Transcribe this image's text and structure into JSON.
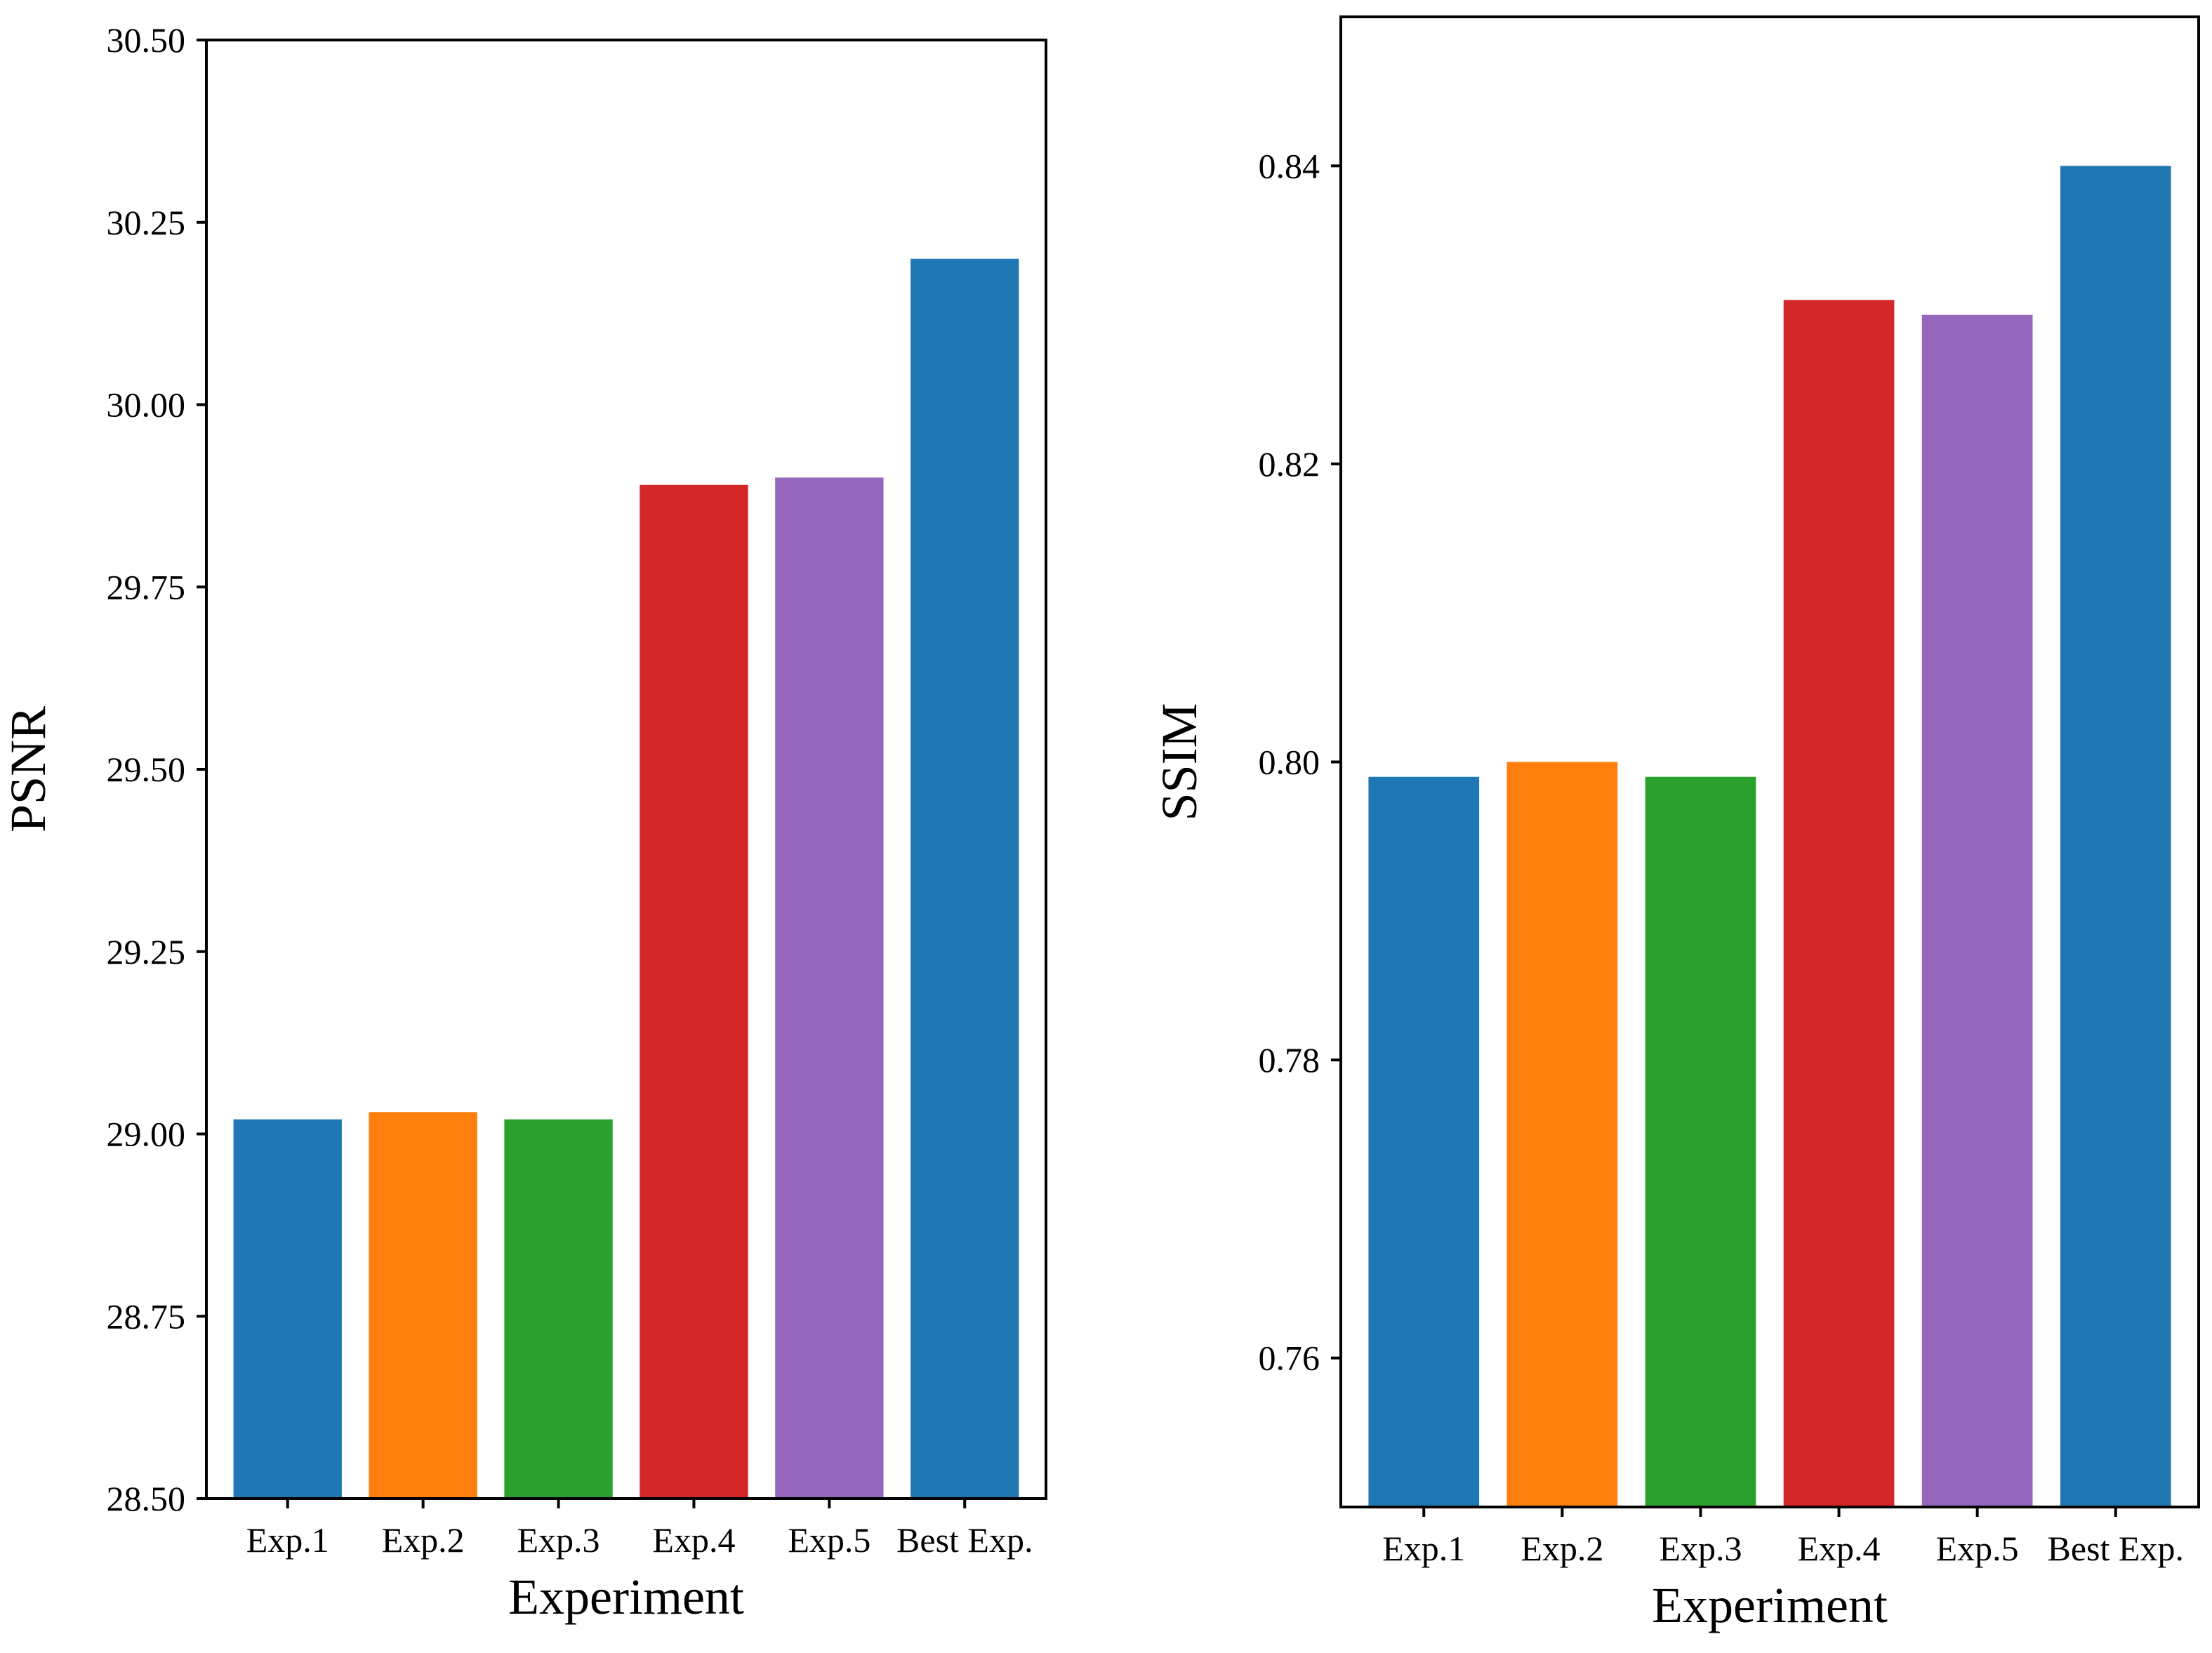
{
  "chart_data": [
    {
      "type": "bar",
      "categories": [
        "Exp.1",
        "Exp.2",
        "Exp.3",
        "Exp.4",
        "Exp.5",
        "Best Exp."
      ],
      "values": [
        29.02,
        29.03,
        29.02,
        29.89,
        29.9,
        30.2
      ],
      "colors": [
        "#1f77b4",
        "#ff7f0e",
        "#2ca02c",
        "#d62728",
        "#9467bd",
        "#1f77b4"
      ],
      "title": "",
      "xlabel": "Experiment",
      "ylabel": "PSNR",
      "ylim": [
        28.5,
        30.5
      ],
      "yticks": [
        28.5,
        28.75,
        29.0,
        29.25,
        29.5,
        29.75,
        30.0,
        30.25,
        30.5
      ],
      "ytick_labels": [
        "28.50",
        "28.75",
        "29.00",
        "29.25",
        "29.50",
        "29.75",
        "30.00",
        "30.25",
        "30.50"
      ],
      "grid": false
    },
    {
      "type": "bar",
      "categories": [
        "Exp.1",
        "Exp.2",
        "Exp.3",
        "Exp.4",
        "Exp.5",
        "Best Exp."
      ],
      "values": [
        0.799,
        0.8,
        0.799,
        0.831,
        0.83,
        0.84
      ],
      "colors": [
        "#1f77b4",
        "#ff7f0e",
        "#2ca02c",
        "#d62728",
        "#9467bd",
        "#1f77b4"
      ],
      "title": "",
      "xlabel": "Experiment",
      "ylabel": "SSIM",
      "ylim": [
        0.75,
        0.85
      ],
      "yticks": [
        0.76,
        0.78,
        0.8,
        0.82,
        0.84
      ],
      "ytick_labels": [
        "0.76",
        "0.78",
        "0.80",
        "0.82",
        "0.84"
      ],
      "grid": false
    }
  ]
}
